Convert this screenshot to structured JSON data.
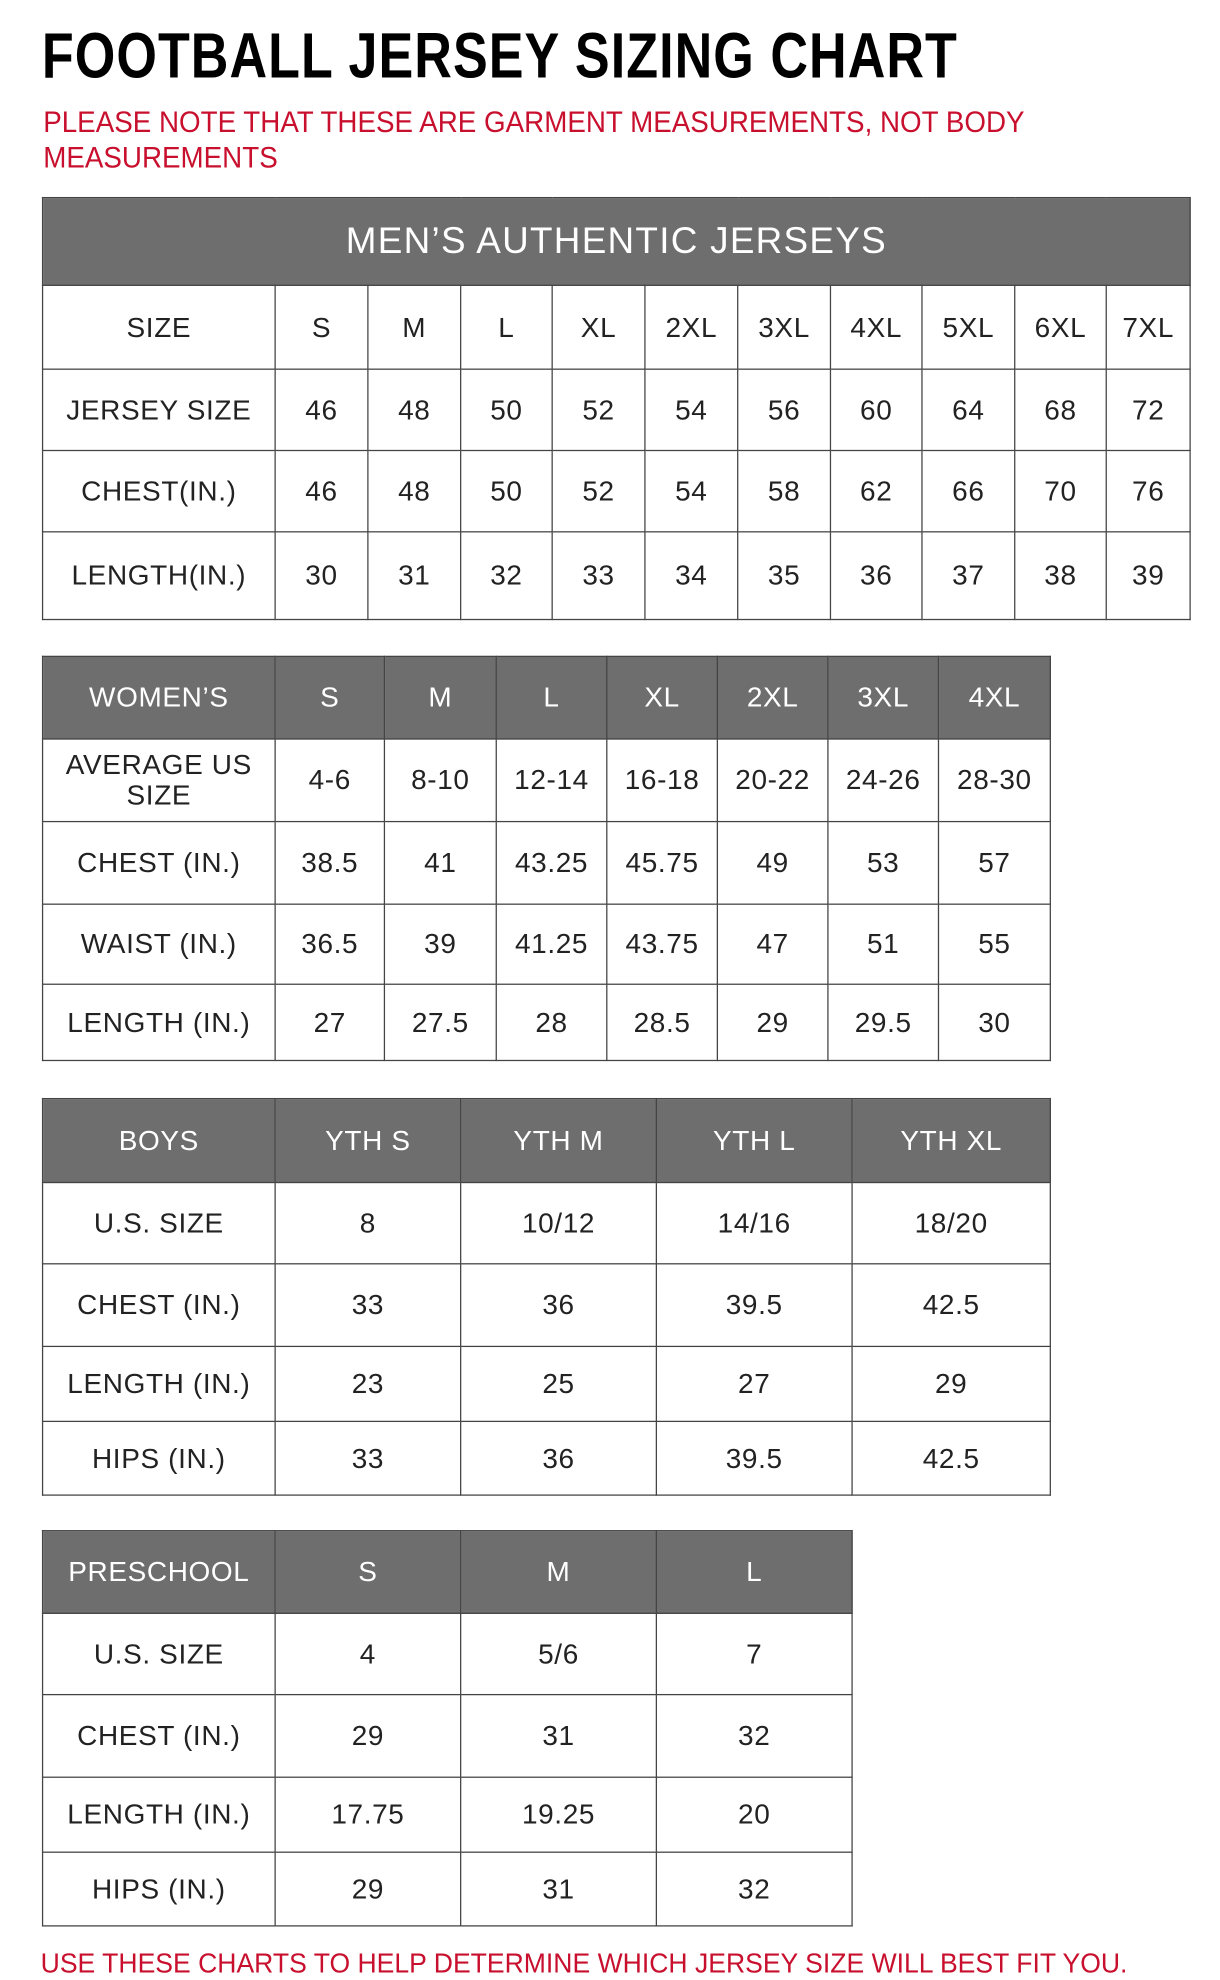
{
  "title": "FOOTBALL JERSEY SIZING CHART",
  "note": "PLEASE NOTE THAT THESE ARE GARMENT MEASUREMENTS, NOT BODY MEASUREMENTS",
  "footer": "USE THESE CHARTS TO HELP DETERMINE WHICH JERSEY SIZE WILL BEST FIT YOU.",
  "colors": {
    "header_bg": "#6e6e6e",
    "accent_red": "#c8102e"
  },
  "mens": {
    "caption": "MEN’S AUTHENTIC JERSEYS",
    "rows": [
      [
        "SIZE",
        "S",
        "M",
        "L",
        "XL",
        "2XL",
        "3XL",
        "4XL",
        "5XL",
        "6XL",
        "7XL"
      ],
      [
        "JERSEY SIZE",
        "46",
        "48",
        "50",
        "52",
        "54",
        "56",
        "60",
        "64",
        "68",
        "72"
      ],
      [
        "CHEST(IN.)",
        "46",
        "48",
        "50",
        "52",
        "54",
        "58",
        "62",
        "66",
        "70",
        "76"
      ],
      [
        "LENGTH(IN.)",
        "30",
        "31",
        "32",
        "33",
        "34",
        "35",
        "36",
        "37",
        "38",
        "39"
      ]
    ]
  },
  "womens": {
    "header": [
      "WOMEN’S",
      "S",
      "M",
      "L",
      "XL",
      "2XL",
      "3XL",
      "4XL"
    ],
    "rows": [
      [
        "AVERAGE US SIZE",
        "4-6",
        "8-10",
        "12-14",
        "16-18",
        "20-22",
        "24-26",
        "28-30"
      ],
      [
        "CHEST (IN.)",
        "38.5",
        "41",
        "43.25",
        "45.75",
        "49",
        "53",
        "57"
      ],
      [
        "WAIST (IN.)",
        "36.5",
        "39",
        "41.25",
        "43.75",
        "47",
        "51",
        "55"
      ],
      [
        "LENGTH (IN.)",
        "27",
        "27.5",
        "28",
        "28.5",
        "29",
        "29.5",
        "30"
      ]
    ]
  },
  "boys": {
    "header": [
      "BOYS",
      "YTH S",
      "YTH M",
      "YTH L",
      "YTH XL"
    ],
    "rows": [
      [
        "U.S. SIZE",
        "8",
        "10/12",
        "14/16",
        "18/20"
      ],
      [
        "CHEST (IN.)",
        "33",
        "36",
        "39.5",
        "42.5"
      ],
      [
        "LENGTH (IN.)",
        "23",
        "25",
        "27",
        "29"
      ],
      [
        "HIPS (IN.)",
        "33",
        "36",
        "39.5",
        "42.5"
      ]
    ]
  },
  "preschool": {
    "header": [
      "PRESCHOOL",
      "S",
      "M",
      "L"
    ],
    "rows": [
      [
        "U.S. SIZE",
        "4",
        "5/6",
        "7"
      ],
      [
        "CHEST (IN.)",
        "29",
        "31",
        "32"
      ],
      [
        "LENGTH (IN.)",
        "17.75",
        "19.25",
        "20"
      ],
      [
        "HIPS (IN.)",
        "29",
        "31",
        "32"
      ]
    ]
  }
}
